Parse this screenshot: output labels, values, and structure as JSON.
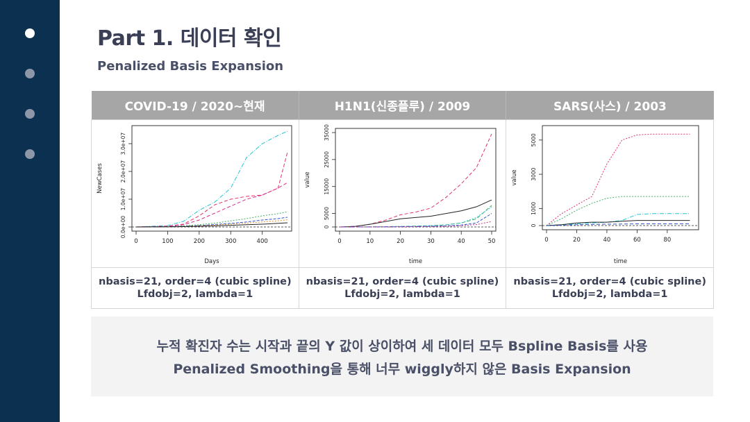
{
  "sidebar": {
    "dots": [
      "active",
      "inactive",
      "inactive",
      "inactive"
    ]
  },
  "header": {
    "title": "Part 1. 데이터 확인",
    "subtitle": "Penalized Basis Expansion"
  },
  "table": {
    "columns": [
      "COVID-19 / 2020~현재",
      "H1N1(신종플루) / 2009",
      "SARS(사스) / 2003"
    ],
    "notes": [
      {
        "line1": "nbasis=21, order=4 (cubic spline)",
        "line2": "Lfdobj=2, lambda=1"
      },
      {
        "line1": "nbasis=21, order=4 (cubic spline)",
        "line2": "Lfdobj=2, lambda=1"
      },
      {
        "line1": "nbasis=21, order=4 (cubic spline)",
        "line2": "Lfdobj=2, lambda=1"
      }
    ]
  },
  "summary": {
    "line1": "누적 확진자 수는 시작과 끝의 Y 값이 상이하여 세 데이터 모두 Bspline Basis를 사용",
    "line2": "Penalized Smoothing을 통해 너무 wiggly하지 않은 Basis Expansion"
  },
  "chart_data": [
    {
      "type": "line",
      "title": "",
      "xlabel": "Days",
      "ylabel": "NewCases",
      "xlim": [
        0,
        480
      ],
      "ylim": [
        0,
        35000000
      ],
      "xticks": [
        "0",
        "100",
        "200",
        "300",
        "400"
      ],
      "yticks": [
        "0.0e+00",
        "1.0e+07",
        "2.0e+07",
        "3.0e+07"
      ],
      "x": [
        0,
        100,
        150,
        200,
        250,
        300,
        350,
        400,
        450,
        480
      ],
      "series": [
        {
          "name": "cyan",
          "color": "#22c4d4",
          "dash": "6,2,1,2",
          "values": [
            0,
            500000,
            2000000,
            6000000,
            9000000,
            14000000,
            25000000,
            30000000,
            33000000,
            34500000
          ]
        },
        {
          "name": "magenta",
          "color": "#e0306a",
          "dash": "5,3",
          "values": [
            0,
            300000,
            1000000,
            4000000,
            8000000,
            10000000,
            11000000,
            11500000,
            14000000,
            27000000
          ]
        },
        {
          "name": "magenta2",
          "color": "#d12d8c",
          "dash": "5,3",
          "values": [
            0,
            200000,
            800000,
            2500000,
            5000000,
            7500000,
            10000000,
            11500000,
            14000000,
            16000000
          ]
        },
        {
          "name": "green",
          "color": "#44b060",
          "dash": "2,2",
          "values": [
            0,
            100000,
            400000,
            800000,
            1400000,
            2200000,
            3000000,
            4000000,
            4800000,
            5500000
          ]
        },
        {
          "name": "blue",
          "color": "#3355cc",
          "dash": "4,2",
          "values": [
            0,
            80000,
            250000,
            500000,
            900000,
            1300000,
            1800000,
            2500000,
            3000000,
            3500000
          ]
        },
        {
          "name": "orange",
          "color": "#e09030",
          "dash": "2,2",
          "values": [
            0,
            60000,
            200000,
            400000,
            700000,
            1000000,
            1400000,
            1800000,
            2200000,
            2600000
          ]
        },
        {
          "name": "black",
          "color": "#222222",
          "dash": "",
          "values": [
            0,
            40000,
            120000,
            250000,
            400000,
            600000,
            800000,
            1000000,
            1300000,
            1500000
          ]
        }
      ]
    },
    {
      "type": "line",
      "title": "",
      "xlabel": "time",
      "ylabel": "value",
      "xlim": [
        0,
        50
      ],
      "ylim": [
        0,
        35000
      ],
      "xticks": [
        "0",
        "10",
        "20",
        "30",
        "40",
        "50"
      ],
      "yticks": [
        "0",
        "5000",
        "15000",
        "25000",
        "35000"
      ],
      "x": [
        0,
        5,
        10,
        15,
        20,
        25,
        30,
        35,
        40,
        45,
        50
      ],
      "series": [
        {
          "name": "red",
          "color": "#e0306a",
          "dash": "5,3",
          "values": [
            0,
            200,
            1000,
            2500,
            4500,
            5500,
            7000,
            11000,
            16000,
            22000,
            34500
          ]
        },
        {
          "name": "black",
          "color": "#222222",
          "dash": "",
          "values": [
            0,
            200,
            1000,
            2000,
            3000,
            3500,
            4000,
            5000,
            6000,
            7500,
            10000
          ]
        },
        {
          "name": "green",
          "color": "#44b060",
          "dash": "5,3",
          "values": [
            0,
            0,
            50,
            100,
            200,
            300,
            500,
            800,
            1500,
            3000,
            8000
          ]
        },
        {
          "name": "cyan",
          "color": "#22c4d4",
          "dash": "2,2",
          "values": [
            0,
            0,
            50,
            100,
            200,
            300,
            500,
            800,
            1500,
            3500,
            7500
          ]
        },
        {
          "name": "blue",
          "color": "#3355cc",
          "dash": "4,2",
          "values": [
            0,
            0,
            0,
            50,
            100,
            150,
            250,
            400,
            700,
            1500,
            5000
          ]
        },
        {
          "name": "magenta",
          "color": "#d12d8c",
          "dash": "2,2",
          "values": [
            0,
            0,
            0,
            30,
            60,
            100,
            150,
            250,
            500,
            900,
            2000
          ]
        }
      ]
    },
    {
      "type": "line",
      "title": "",
      "xlabel": "time",
      "ylabel": "value",
      "xlim": [
        0,
        98
      ],
      "ylim": [
        0,
        5600
      ],
      "xticks": [
        "0",
        "20",
        "40",
        "60",
        "80"
      ],
      "yticks": [
        "0",
        "1000",
        "3000",
        "5000"
      ],
      "x": [
        0,
        10,
        20,
        30,
        40,
        50,
        60,
        70,
        80,
        90,
        95
      ],
      "series": [
        {
          "name": "red",
          "color": "#e0306a",
          "dash": "2,2",
          "values": [
            0,
            700,
            1200,
            1700,
            3600,
            5000,
            5300,
            5350,
            5350,
            5350,
            5350
          ]
        },
        {
          "name": "green",
          "color": "#44b060",
          "dash": "2,2",
          "values": [
            0,
            400,
            900,
            1300,
            1600,
            1700,
            1700,
            1700,
            1700,
            1700,
            1700
          ]
        },
        {
          "name": "cyan",
          "color": "#22c4d4",
          "dash": "6,2,1,2",
          "values": [
            0,
            50,
            100,
            150,
            200,
            300,
            650,
            700,
            700,
            700,
            700
          ]
        },
        {
          "name": "black",
          "color": "#222222",
          "dash": "",
          "values": [
            0,
            50,
            150,
            200,
            200,
            250,
            300,
            300,
            300,
            300,
            300
          ]
        },
        {
          "name": "blue",
          "color": "#3355cc",
          "dash": "5,3",
          "values": [
            0,
            20,
            50,
            70,
            80,
            90,
            100,
            100,
            100,
            100,
            100
          ]
        }
      ]
    }
  ]
}
